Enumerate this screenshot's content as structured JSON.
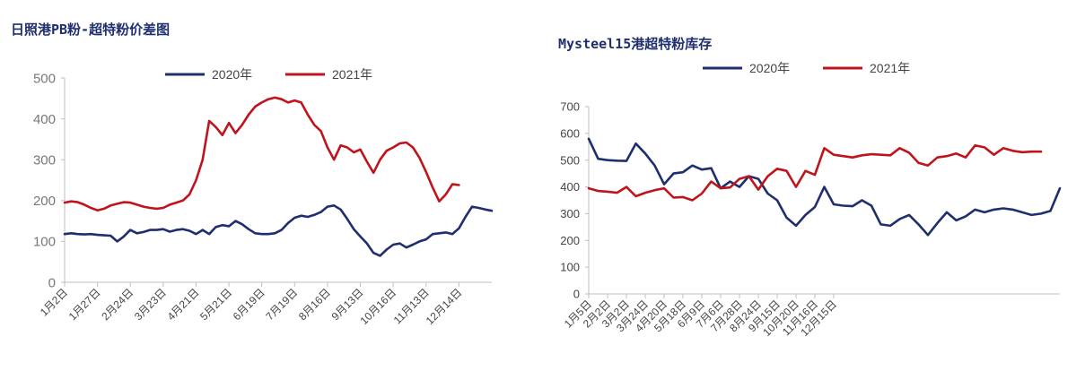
{
  "chart_data": [
    {
      "type": "line",
      "title": "日照港PB粉-超特粉价差图",
      "xlabel": "",
      "ylabel": "",
      "ylim": [
        0,
        500
      ],
      "yticks": [
        0,
        100,
        200,
        300,
        400,
        500
      ],
      "x_tick_labels": [
        "1月2日",
        "1月27日",
        "2月24日",
        "3月23日",
        "4月21日",
        "5月21日",
        "6月19日",
        "7月19日",
        "8月16日",
        "9月13日",
        "10月16日",
        "11月13日",
        "12月14日"
      ],
      "legend_position": "top-center",
      "grid": false,
      "colors": {
        "2020年": "#1f2f6e",
        "2021年": "#c0141c"
      },
      "series": [
        {
          "name": "2020年",
          "x": [
            0,
            0.2,
            0.4,
            0.6,
            0.8,
            1.0,
            1.2,
            1.4,
            1.6,
            1.8,
            2.0,
            2.2,
            2.4,
            2.6,
            2.8,
            3.0,
            3.2,
            3.4,
            3.6,
            3.8,
            4.0,
            4.2,
            4.4,
            4.6,
            4.8,
            5.0,
            5.2,
            5.4,
            5.6,
            5.8,
            6.0,
            6.2,
            6.4,
            6.6,
            6.8,
            7.0,
            7.2,
            7.4,
            7.6,
            7.8,
            8.0,
            8.2,
            8.4,
            8.6,
            8.8,
            9.0,
            9.2,
            9.4,
            9.6,
            9.8,
            10.0,
            10.2,
            10.4,
            10.6,
            10.8,
            11.0,
            11.2,
            11.4,
            11.6,
            11.8,
            12.0,
            12.2,
            12.4,
            12.6,
            12.8,
            13.0
          ],
          "values": [
            118,
            120,
            118,
            117,
            118,
            116,
            115,
            114,
            100,
            112,
            128,
            120,
            123,
            128,
            128,
            130,
            124,
            128,
            130,
            126,
            118,
            128,
            118,
            135,
            140,
            137,
            150,
            142,
            130,
            120,
            118,
            118,
            120,
            128,
            145,
            158,
            163,
            160,
            165,
            172,
            185,
            188,
            178,
            155,
            130,
            112,
            95,
            72,
            65,
            80,
            92,
            95,
            85,
            92,
            100,
            105,
            118,
            120,
            122,
            118,
            132,
            160,
            185,
            182,
            178,
            175
          ]
        },
        {
          "name": "2021年",
          "x": [
            0,
            0.2,
            0.4,
            0.6,
            0.8,
            1.0,
            1.2,
            1.4,
            1.6,
            1.8,
            2.0,
            2.2,
            2.4,
            2.6,
            2.8,
            3.0,
            3.2,
            3.4,
            3.6,
            3.8,
            4.0,
            4.2,
            4.4,
            4.6,
            4.8,
            5.0,
            5.2,
            5.4,
            5.6,
            5.8,
            6.0,
            6.2,
            6.4,
            6.6,
            6.8,
            7.0,
            7.2,
            7.4,
            7.6,
            7.8,
            8.0,
            8.2,
            8.4,
            8.6,
            8.8,
            9.0,
            9.2,
            9.4,
            9.6,
            9.8,
            10.0,
            10.2,
            10.4,
            10.6,
            10.8,
            11.0,
            11.2,
            11.4,
            11.6,
            11.8,
            12.0
          ],
          "values": [
            195,
            198,
            196,
            190,
            182,
            176,
            180,
            188,
            192,
            196,
            195,
            190,
            185,
            182,
            180,
            182,
            190,
            195,
            200,
            215,
            250,
            300,
            395,
            380,
            360,
            390,
            365,
            385,
            410,
            430,
            440,
            448,
            452,
            448,
            440,
            445,
            440,
            410,
            385,
            370,
            330,
            300,
            335,
            330,
            318,
            325,
            295,
            268,
            300,
            322,
            330,
            340,
            342,
            330,
            305,
            270,
            232,
            198,
            215,
            240,
            238
          ]
        }
      ]
    },
    {
      "type": "line",
      "title": "Mysteel15港超特粉库存",
      "xlabel": "",
      "ylabel": "",
      "ylim": [
        0,
        700
      ],
      "yticks": [
        0,
        100,
        200,
        300,
        400,
        500,
        600,
        700
      ],
      "x_tick_labels": [
        "1月5日",
        "2月2日",
        "3月2日",
        "3月24日",
        "4月20日",
        "5月18日",
        "6月9日",
        "7月6日",
        "7月28日",
        "8月24日",
        "9月15日",
        "10月20日",
        "11月16日",
        "12月15日"
      ],
      "legend_position": "top-center",
      "grid": false,
      "colors": {
        "2020年": "#1f2f6e",
        "2021年": "#c0141c"
      },
      "series": [
        {
          "name": "2020年",
          "x": [
            0,
            0.5,
            1,
            1.5,
            2,
            2.5,
            3,
            3.5,
            4,
            4.5,
            5,
            5.5,
            6,
            6.5,
            7,
            7.5,
            8,
            8.5,
            9,
            9.5,
            10,
            10.5,
            11,
            11.5,
            12,
            12.5,
            13,
            13.5,
            14,
            14.5,
            15,
            15.5,
            16,
            16.5,
            17,
            17.5,
            18,
            18.5,
            19,
            19.5,
            20,
            20.5,
            21,
            21.5,
            22,
            22.5,
            23,
            23.5,
            24,
            24.5,
            25
          ],
          "values": [
            580,
            505,
            500,
            498,
            497,
            562,
            525,
            480,
            410,
            450,
            455,
            480,
            465,
            470,
            395,
            420,
            400,
            440,
            430,
            375,
            350,
            285,
            255,
            295,
            325,
            400,
            335,
            330,
            328,
            350,
            330,
            260,
            255,
            280,
            295,
            260,
            220,
            265,
            305,
            275,
            290,
            315,
            305,
            315,
            320,
            315,
            305,
            295,
            300,
            310,
            395
          ]
        },
        {
          "name": "2021年",
          "x": [
            0,
            0.5,
            1,
            1.5,
            2,
            2.5,
            3,
            3.5,
            4,
            4.5,
            5,
            5.5,
            6,
            6.5,
            7,
            7.5,
            8,
            8.5,
            9,
            9.5,
            10,
            10.5,
            11,
            11.5,
            12,
            12.5,
            13,
            13.5,
            14,
            14.5,
            15,
            15.5,
            16,
            16.5,
            17,
            17.5,
            18,
            18.5,
            19,
            19.5,
            20,
            20.5,
            21,
            21.5,
            22,
            22.5,
            23,
            23.5,
            24
          ],
          "values": [
            395,
            385,
            382,
            378,
            400,
            365,
            378,
            388,
            395,
            360,
            362,
            350,
            375,
            420,
            395,
            398,
            430,
            440,
            390,
            440,
            468,
            460,
            400,
            460,
            445,
            545,
            520,
            515,
            510,
            518,
            522,
            520,
            518,
            545,
            528,
            490,
            480,
            510,
            515,
            525,
            510,
            555,
            548,
            520,
            545,
            535,
            530,
            532,
            532
          ]
        }
      ]
    }
  ]
}
